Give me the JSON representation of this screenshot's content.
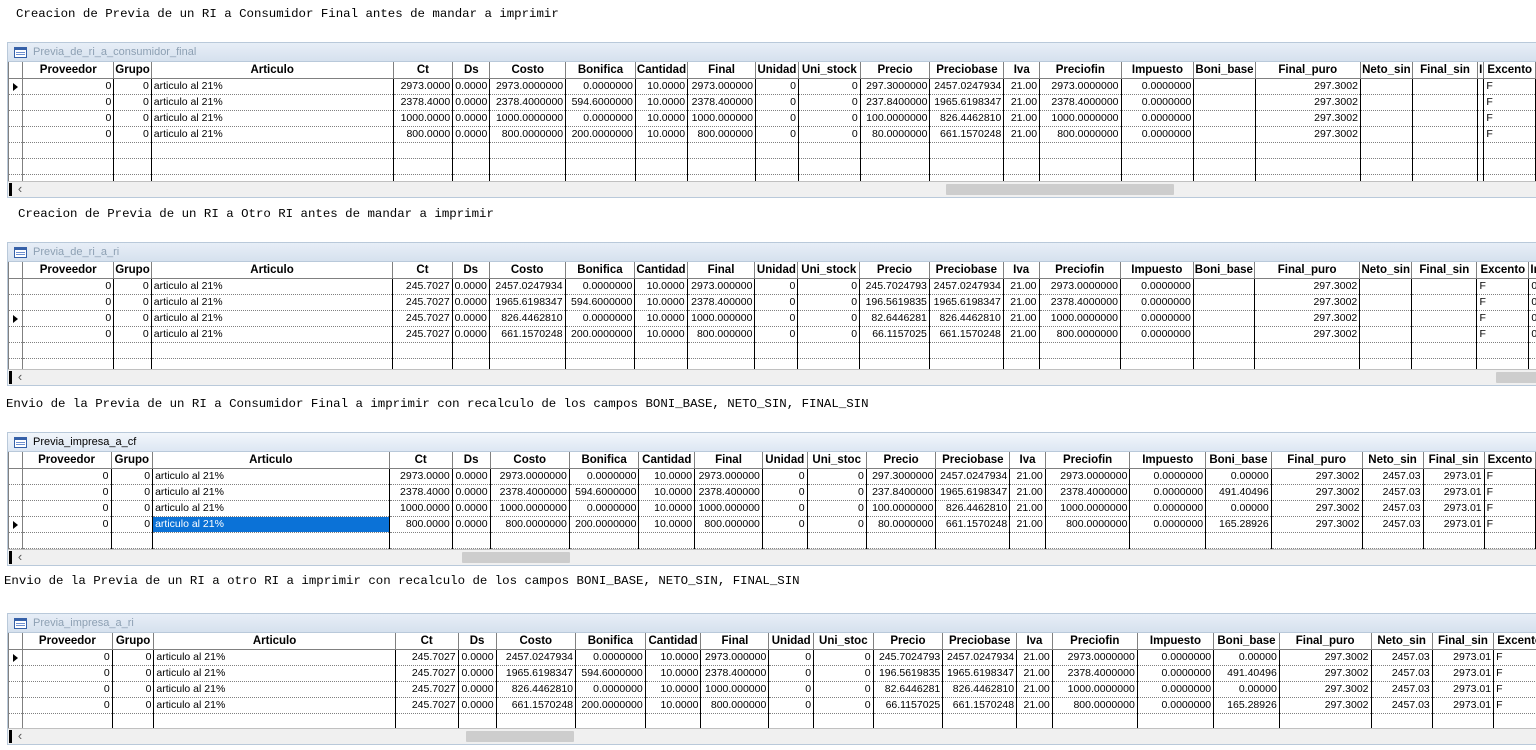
{
  "captions": [
    "Creacion de Previa de un RI a Consumidor Final antes de mandar a imprimir",
    "Creacion de Previa de un RI a Otro RI antes de mandar a imprimir",
    "Envio de la Previa de un RI a Consumidor Final a imprimir con recalculo de los campos BONI_BASE, NETO_SIN, FINAL_SIN",
    "Envio de la Previa de un RI a otro RI a imprimir con recalculo de los campos BONI_BASE, NETO_SIN, FINAL_SIN"
  ],
  "grids": [
    {
      "title": "Previa_de_ri_a_consumidor_final",
      "active": false,
      "columns": [
        "Proveedor",
        "Grupo",
        "Articulo",
        "Ct",
        "Ds",
        "Costo",
        "Bonifica",
        "Cantidad",
        "Final",
        "Unidad",
        "Uni_stock",
        "Precio",
        "Preciobase",
        "Iva",
        "Preciofin",
        "Impuesto",
        "Boni_base",
        "Final_puro",
        "Neto_sin",
        "Final_sin",
        "I",
        "Excento",
        "I"
      ],
      "rows": [
        [
          "0",
          "0",
          "articulo al 21%",
          "2973.0000",
          "0.0000",
          "2973.0000000",
          "0.0000000",
          "10.0000",
          "2973.000000",
          "0",
          "0",
          "297.3000000",
          "2457.0247934",
          "21.00",
          "2973.0000000",
          "0.0000000",
          "",
          "297.3002",
          "",
          "",
          "",
          "F",
          ""
        ],
        [
          "0",
          "0",
          "articulo al 21%",
          "2378.4000",
          "0.0000",
          "2378.4000000",
          "594.6000000",
          "10.0000",
          "2378.400000",
          "0",
          "0",
          "237.8400000",
          "1965.6198347",
          "21.00",
          "2378.4000000",
          "0.0000000",
          "",
          "297.3002",
          "",
          "",
          "",
          "F",
          ""
        ],
        [
          "0",
          "0",
          "articulo al 21%",
          "1000.0000",
          "0.0000",
          "1000.0000000",
          "0.0000000",
          "10.0000",
          "1000.000000",
          "0",
          "0",
          "100.0000000",
          "826.4462810",
          "21.00",
          "1000.0000000",
          "0.0000000",
          "",
          "297.3002",
          "",
          "",
          "",
          "F",
          ""
        ],
        [
          "0",
          "0",
          "articulo al 21%",
          "800.0000",
          "0.0000",
          "800.0000000",
          "200.0000000",
          "10.0000",
          "800.000000",
          "0",
          "0",
          "80.0000000",
          "661.1570248",
          "21.00",
          "800.0000000",
          "0.0000000",
          "",
          "297.3002",
          "",
          "",
          "",
          "F",
          ""
        ]
      ],
      "current_row": 0,
      "selected_cell": null,
      "scroll_pos": 0.6
    },
    {
      "title": "Previa_de_ri_a_ri",
      "active": false,
      "columns": [
        "Proveedor",
        "Grupo",
        "Articulo",
        "Ct",
        "Ds",
        "Costo",
        "Bonifica",
        "Cantidad",
        "Final",
        "Unidad",
        "Uni_stock",
        "Precio",
        "Preciobase",
        "Iva",
        "Preciofin",
        "Impuesto",
        "Boni_base",
        "Final_puro",
        "Neto_sin",
        "Final_sin",
        "Excento",
        "Im"
      ],
      "rows": [
        [
          "0",
          "0",
          "articulo al 21%",
          "245.7027",
          "0.0000",
          "2457.0247934",
          "0.0000000",
          "10.0000",
          "2973.000000",
          "0",
          "0",
          "245.7024793",
          "2457.0247934",
          "21.00",
          "2973.0000000",
          "0.0000000",
          "",
          "297.3002",
          "",
          "",
          "F",
          "00"
        ],
        [
          "0",
          "0",
          "articulo al 21%",
          "245.7027",
          "0.0000",
          "1965.6198347",
          "594.6000000",
          "10.0000",
          "2378.400000",
          "0",
          "0",
          "196.5619835",
          "1965.6198347",
          "21.00",
          "2378.4000000",
          "0.0000000",
          "",
          "297.3002",
          "",
          "",
          "F",
          "00"
        ],
        [
          "0",
          "0",
          "articulo al 21%",
          "245.7027",
          "0.0000",
          "826.4462810",
          "0.0000000",
          "10.0000",
          "1000.000000",
          "0",
          "0",
          "82.6446281",
          "826.4462810",
          "21.00",
          "1000.0000000",
          "0.0000000",
          "",
          "297.3002",
          "",
          "",
          "F",
          "00"
        ],
        [
          "0",
          "0",
          "articulo al 21%",
          "245.7027",
          "0.0000",
          "661.1570248",
          "200.0000000",
          "10.0000",
          "800.000000",
          "0",
          "0",
          "66.1157025",
          "661.1570248",
          "21.00",
          "800.0000000",
          "0.0000000",
          "",
          "297.3002",
          "",
          "",
          "F",
          "00"
        ]
      ],
      "current_row": 2,
      "selected_cell": null,
      "scroll_pos": 0.98
    },
    {
      "title": "Previa_impresa_a_cf",
      "active": true,
      "columns": [
        "Proveedor",
        "Grupo",
        "Articulo",
        "Ct",
        "Ds",
        "Costo",
        "Bonifica",
        "Cantidad",
        "Final",
        "Unidad",
        "Uni_stoc",
        "Precio",
        "Preciobase",
        "Iva",
        "Preciofin",
        "Impuesto",
        "Boni_base",
        "Final_puro",
        "Neto_sin",
        "Final_sin",
        "Excento",
        "I"
      ],
      "rows": [
        [
          "0",
          "0",
          "articulo al 21%",
          "2973.0000",
          "0.0000",
          "2973.0000000",
          "0.0000000",
          "10.0000",
          "2973.000000",
          "0",
          "0",
          "297.3000000",
          "2457.0247934",
          "21.00",
          "2973.0000000",
          "0.0000000",
          "0.00000",
          "297.3002",
          "2457.03",
          "2973.01",
          "F",
          ""
        ],
        [
          "0",
          "0",
          "articulo al 21%",
          "2378.4000",
          "0.0000",
          "2378.4000000",
          "594.6000000",
          "10.0000",
          "2378.400000",
          "0",
          "0",
          "237.8400000",
          "1965.6198347",
          "21.00",
          "2378.4000000",
          "0.0000000",
          "491.40496",
          "297.3002",
          "2457.03",
          "2973.01",
          "F",
          ""
        ],
        [
          "0",
          "0",
          "articulo al 21%",
          "1000.0000",
          "0.0000",
          "1000.0000000",
          "0.0000000",
          "10.0000",
          "1000.000000",
          "0",
          "0",
          "100.0000000",
          "826.4462810",
          "21.00",
          "1000.0000000",
          "0.0000000",
          "0.00000",
          "297.3002",
          "2457.03",
          "2973.01",
          "F",
          ""
        ],
        [
          "0",
          "0",
          "articulo al 21%",
          "800.0000",
          "0.0000",
          "800.0000000",
          "200.0000000",
          "10.0000",
          "800.000000",
          "0",
          "0",
          "80.0000000",
          "661.1570248",
          "21.00",
          "800.0000000",
          "0.0000000",
          "165.28926",
          "297.3002",
          "2457.03",
          "2973.01",
          "F",
          ""
        ]
      ],
      "current_row": 3,
      "selected_cell": [
        3,
        2
      ],
      "scroll_pos": 0.3
    },
    {
      "title": "Previa_impresa_a_ri",
      "active": false,
      "columns": [
        "Proveedor",
        "Grupo",
        "Articulo",
        "Ct",
        "Ds",
        "Costo",
        "Bonifica",
        "Cantidad",
        "Final",
        "Unidad",
        "Uni_stoc",
        "Precio",
        "Preciobase",
        "Iva",
        "Preciofin",
        "Impuesto",
        "Boni_base",
        "Final_puro",
        "Neto_sin",
        "Final_sin",
        "Excento"
      ],
      "rows": [
        [
          "0",
          "0",
          "articulo al 21%",
          "245.7027",
          "0.0000",
          "2457.0247934",
          "0.0000000",
          "10.0000",
          "2973.000000",
          "0",
          "0",
          "245.7024793",
          "2457.0247934",
          "21.00",
          "2973.0000000",
          "0.0000000",
          "0.00000",
          "297.3002",
          "2457.03",
          "2973.01",
          "F"
        ],
        [
          "0",
          "0",
          "articulo al 21%",
          "245.7027",
          "0.0000",
          "1965.6198347",
          "594.6000000",
          "10.0000",
          "2378.400000",
          "0",
          "0",
          "196.5619835",
          "1965.6198347",
          "21.00",
          "2378.4000000",
          "0.0000000",
          "491.40496",
          "297.3002",
          "2457.03",
          "2973.01",
          "F"
        ],
        [
          "0",
          "0",
          "articulo al 21%",
          "245.7027",
          "0.0000",
          "826.4462810",
          "0.0000000",
          "10.0000",
          "1000.000000",
          "0",
          "0",
          "82.6446281",
          "826.4462810",
          "21.00",
          "1000.0000000",
          "0.0000000",
          "0.00000",
          "297.3002",
          "2457.03",
          "2973.01",
          "F"
        ],
        [
          "0",
          "0",
          "articulo al 21%",
          "245.7027",
          "0.0000",
          "661.1570248",
          "200.0000000",
          "10.0000",
          "800.000000",
          "0",
          "0",
          "66.1157025",
          "661.1570248",
          "21.00",
          "800.0000000",
          "0.0000000",
          "165.28926",
          "297.3002",
          "2457.03",
          "2973.01",
          "F"
        ]
      ],
      "current_row": 0,
      "selected_cell": null,
      "scroll_pos": 0.3
    }
  ],
  "colors": {
    "selection": "#0b72d7",
    "title_inactive": "#8da0b3"
  },
  "icons": {
    "window": "table-window-icon",
    "row_pointer": "row-pointer-icon",
    "scroll_left": "scroll-left-arrow-icon"
  }
}
